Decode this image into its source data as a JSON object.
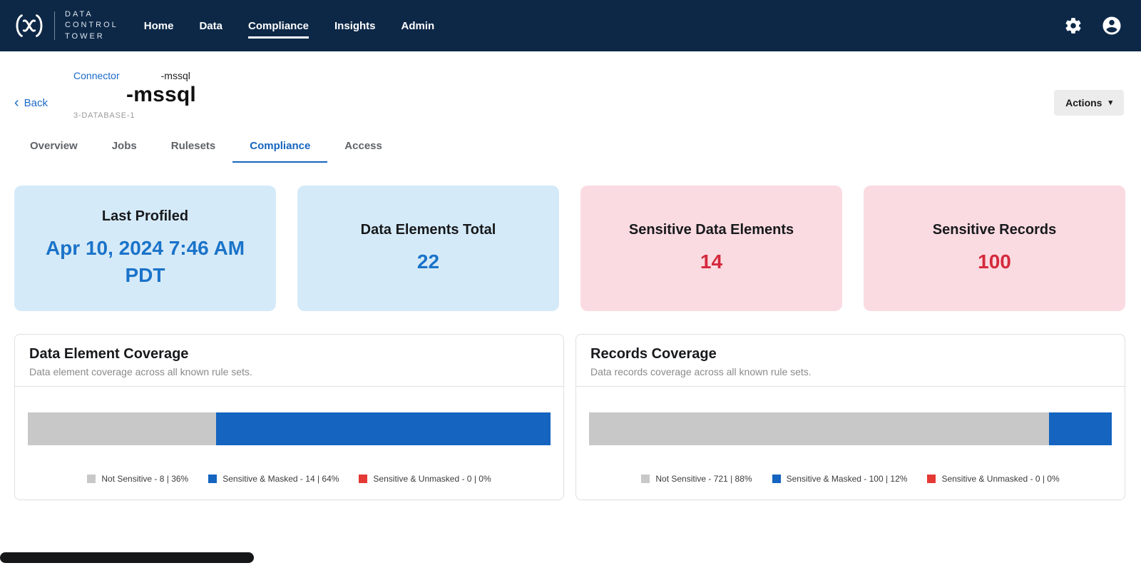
{
  "navbar": {
    "brand_lines": [
      "DATA",
      "CONTROL",
      "TOWER"
    ],
    "background": "#0d2847",
    "items": [
      {
        "label": "Home",
        "active": false
      },
      {
        "label": "Data",
        "active": false
      },
      {
        "label": "Compliance",
        "active": true
      },
      {
        "label": "Insights",
        "active": false
      },
      {
        "label": "Admin",
        "active": false
      }
    ]
  },
  "page_header": {
    "back_label": "Back",
    "breadcrumb": {
      "link_label": "Connector",
      "current_label": "-mssql"
    },
    "title": "-mssql",
    "subtitle": "3-DATABASE-1",
    "actions_label": "Actions"
  },
  "tabs": [
    {
      "label": "Overview",
      "active": false
    },
    {
      "label": "Jobs",
      "active": false
    },
    {
      "label": "Rulesets",
      "active": false
    },
    {
      "label": "Compliance",
      "active": true
    },
    {
      "label": "Access",
      "active": false
    }
  ],
  "stat_cards": [
    {
      "title": "Last Profiled",
      "value": "Apr 10, 2024 7:46 AM PDT",
      "theme": "blue",
      "background": "#d5eaf8",
      "value_color": "#1a73c9"
    },
    {
      "title": "Data Elements Total",
      "value": "22",
      "theme": "blue",
      "background": "#d5eaf8",
      "value_color": "#1a73c9"
    },
    {
      "title": "Sensitive Data Elements",
      "value": "14",
      "theme": "red",
      "background": "#fadbe1",
      "value_color": "#d5293c"
    },
    {
      "title": "Sensitive Records",
      "value": "100",
      "theme": "red",
      "background": "#fadbe1",
      "value_color": "#d5293c"
    }
  ],
  "chart_data": [
    {
      "type": "bar",
      "variant": "stacked-horizontal",
      "title": "Data Element Coverage",
      "subtitle": "Data element coverage across all known rule sets.",
      "segments": [
        {
          "name": "Not Sensitive",
          "count": 8,
          "percent": 36,
          "color": "#c8c8c8",
          "label": "Not Sensitive - 8 | 36%"
        },
        {
          "name": "Sensitive & Masked",
          "count": 14,
          "percent": 64,
          "color": "#1464c0",
          "label": "Sensitive & Masked - 14 | 64%"
        },
        {
          "name": "Sensitive & Unmasked",
          "count": 0,
          "percent": 0,
          "color": "#e53935",
          "label": "Sensitive & Unmasked - 0 | 0%"
        }
      ]
    },
    {
      "type": "bar",
      "variant": "stacked-horizontal",
      "title": "Records Coverage",
      "subtitle": "Data records coverage across all known rule sets.",
      "segments": [
        {
          "name": "Not Sensitive",
          "count": 721,
          "percent": 88,
          "color": "#c8c8c8",
          "label": "Not Sensitive - 721 | 88%"
        },
        {
          "name": "Sensitive & Masked",
          "count": 100,
          "percent": 12,
          "color": "#1464c0",
          "label": "Sensitive & Masked - 100 | 12%"
        },
        {
          "name": "Sensitive & Unmasked",
          "count": 0,
          "percent": 0,
          "color": "#e53935",
          "label": "Sensitive & Unmasked - 0 | 0%"
        }
      ]
    }
  ]
}
